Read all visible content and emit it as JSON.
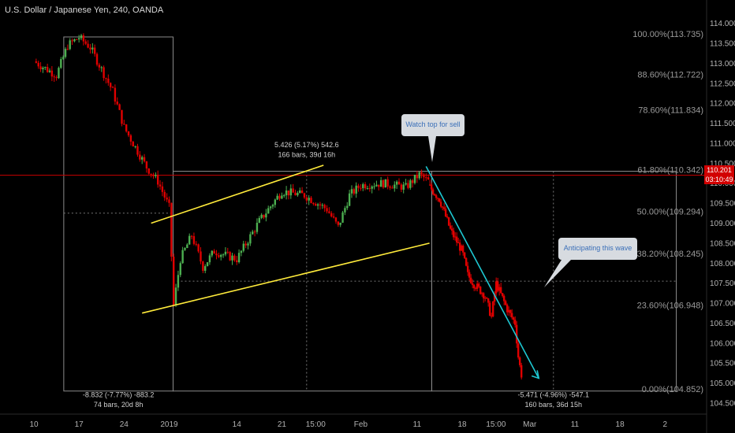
{
  "header": {
    "title": "U.S. Dollar / Japanese Yen, 240, OANDA"
  },
  "price_tag": {
    "price": "110.201",
    "countdown": "03:10:49"
  },
  "annotations": {
    "callout_sell": "Watch top for sell",
    "callout_wave": "Anticipating this wave",
    "measure_left_line1": "-8.832 (-7.77%) -883.2",
    "measure_left_line2": "74 bars, 20d 8h",
    "measure_mid_line1": "5.426 (5.17%) 542.6",
    "measure_mid_line2": "166 bars, 39d 16h",
    "measure_right_line1": "-5.471 (-4.96%) -547.1",
    "measure_right_line2": "160 bars, 36d 15h"
  },
  "colors": {
    "up": "#4caf50",
    "down": "#e00000",
    "channel": "#ffeb3b",
    "trend": "#1ec8d2",
    "hline": "#c00000",
    "fib": "#777777"
  },
  "chart_data": {
    "type": "candlestick",
    "title": "U.S. Dollar / Japanese Yen, 240, OANDA",
    "y_range": [
      104.4,
      114.25
    ],
    "y_ticks": [
      104.5,
      105.0,
      105.5,
      106.0,
      106.5,
      107.0,
      107.5,
      108.0,
      108.5,
      109.0,
      109.5,
      110.0,
      110.5,
      111.0,
      111.5,
      112.0,
      112.5,
      113.0,
      113.5,
      114.0
    ],
    "x_ticks": [
      {
        "label": "10",
        "i": 0
      },
      {
        "label": "17",
        "i": 4
      },
      {
        "label": "24",
        "i": 8
      },
      {
        "label": "2019",
        "i": 12
      },
      {
        "label": "14",
        "i": 18
      },
      {
        "label": "21",
        "i": 22
      },
      {
        "label": "15:00",
        "i": 25
      },
      {
        "label": "Feb",
        "i": 29
      },
      {
        "label": "11",
        "i": 34
      },
      {
        "label": "18",
        "i": 38
      },
      {
        "label": "15:00",
        "i": 41
      },
      {
        "label": "Mar",
        "i": 44
      },
      {
        "label": "11",
        "i": 48
      },
      {
        "label": "18",
        "i": 52
      },
      {
        "label": "2",
        "i": 56
      }
    ],
    "fib_levels": [
      {
        "label": "100.00%(113.735)",
        "value": 113.735
      },
      {
        "label": "88.60%(112.722)",
        "value": 112.722
      },
      {
        "label": "78.60%(111.834)",
        "value": 111.834
      },
      {
        "label": "61.80%(110.342)",
        "value": 110.342
      },
      {
        "label": "50.00%(109.294)",
        "value": 109.294
      },
      {
        "label": "38.20%(108.245)",
        "value": 108.245
      },
      {
        "label": "23.60%(106.948)",
        "value": 106.948
      },
      {
        "label": "0.00%(104.852)",
        "value": 104.852
      }
    ],
    "current_price": 110.201,
    "path_up_to_feb": [
      [
        0,
        113.05
      ],
      [
        2,
        112.7
      ],
      [
        3,
        113.45
      ],
      [
        4,
        113.65
      ],
      [
        5,
        113.4
      ],
      [
        7,
        112.3
      ],
      [
        8,
        111.4
      ],
      [
        9,
        110.9
      ],
      [
        10,
        110.4
      ],
      [
        11,
        110.05
      ],
      [
        12,
        109.4
      ],
      [
        12.4,
        106.95
      ],
      [
        13,
        108.1
      ],
      [
        14,
        108.7
      ],
      [
        15,
        107.9
      ],
      [
        16,
        108.3
      ],
      [
        18,
        108.1
      ],
      [
        20,
        109.05
      ],
      [
        22,
        109.8
      ],
      [
        24,
        109.7
      ],
      [
        26,
        109.35
      ],
      [
        27,
        108.9
      ],
      [
        28,
        109.7
      ],
      [
        29,
        109.95
      ],
      [
        31,
        110.0
      ],
      [
        33,
        109.9
      ],
      [
        34.2,
        110.22
      ],
      [
        35,
        110.05
      ]
    ],
    "path_decline": [
      [
        35,
        109.95
      ],
      [
        36,
        109.6
      ],
      [
        37,
        108.8
      ],
      [
        38,
        108.3
      ],
      [
        38.5,
        107.7
      ],
      [
        39,
        107.5
      ],
      [
        40,
        107.2
      ],
      [
        40.6,
        106.65
      ],
      [
        41,
        107.5
      ],
      [
        42,
        106.85
      ],
      [
        42.7,
        106.5
      ],
      [
        43,
        105.6
      ],
      [
        43.4,
        105.0
      ]
    ],
    "channel": {
      "upper": [
        [
          10.4,
          109.0
        ],
        [
          25.7,
          110.45
        ]
      ],
      "lower": [
        [
          9.6,
          106.75
        ],
        [
          35.1,
          108.5
        ]
      ]
    },
    "trendline": [
      [
        34.8,
        110.42
      ],
      [
        44.8,
        105.12
      ]
    ]
  }
}
